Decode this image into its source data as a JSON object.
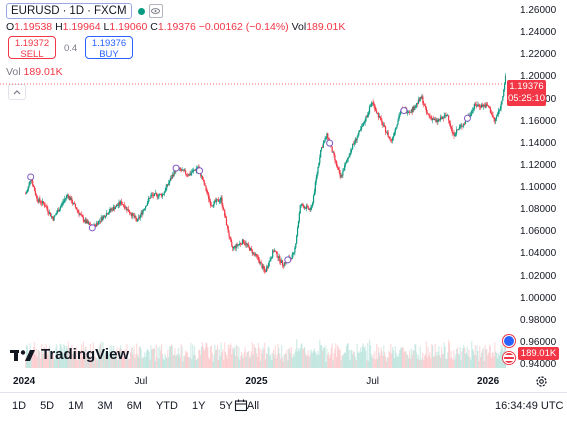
{
  "header": {
    "symbol": "EURUSD",
    "interval": "1D",
    "source": "FXCM",
    "sep": "·"
  },
  "ohlc": {
    "o_label": "O",
    "o": "1.19538",
    "h_label": "H",
    "h": "1.19964",
    "l_label": "L",
    "l": "1.19060",
    "c_label": "C",
    "c": "1.19376",
    "change": "−0.00162 (−0.14%)",
    "vol_label": "Vol",
    "vol": "189.01K"
  },
  "trade": {
    "sell_price": "1.19372",
    "sell_label": "SELL",
    "spread": "0.4",
    "buy_price": "1.19376",
    "buy_label": "BUY"
  },
  "volume_legend": {
    "label": "Vol",
    "value": "189.01K"
  },
  "price_axis": {
    "ticks": [
      "1.26000",
      "1.24000",
      "1.22000",
      "1.20000",
      "1.18000",
      "1.16000",
      "1.14000",
      "1.12000",
      "1.10000",
      "1.08000",
      "1.06000",
      "1.04000",
      "1.02000",
      "1.00000",
      "0.98000",
      "0.96000",
      "0.94000"
    ],
    "last_price": "1.19376",
    "countdown": "05:25:10",
    "volume_tag": "189.01K"
  },
  "time_axis": {
    "ticks": [
      "2024",
      "Jul",
      "2025",
      "Jul",
      "2026"
    ]
  },
  "logo": {
    "text": "TradingView"
  },
  "ranges": [
    "1D",
    "5D",
    "1M",
    "3M",
    "6M",
    "YTD",
    "1Y",
    "5Y",
    "All"
  ],
  "clock": "16:34:49 UTC",
  "colors": {
    "up": "#089981",
    "down": "#f23645",
    "accent": "#2962ff"
  },
  "icons": {
    "settings": "gear-icon",
    "date_range": "calendar-icon",
    "collapse": "chevron-up-icon",
    "status": "market-open-dot-icon",
    "flags": [
      "eu-flag-icon",
      "us-flag-icon"
    ]
  },
  "chart_data": {
    "type": "candlestick",
    "symbol": "EURUSD",
    "y_range": [
      0.94,
      1.26
    ],
    "x_ticks": [
      "2024",
      "Jul",
      "2025",
      "Jul",
      "2026"
    ],
    "close_path": [
      {
        "x": "2024-01-02",
        "y": 1.095
      },
      {
        "x": "2024-01-05",
        "y": 1.098
      },
      {
        "x": "2024-01-10",
        "y": 1.11
      },
      {
        "x": "2024-01-20",
        "y": 1.09
      },
      {
        "x": "2024-02-01",
        "y": 1.085
      },
      {
        "x": "2024-02-14",
        "y": 1.072
      },
      {
        "x": "2024-03-08",
        "y": 1.094
      },
      {
        "x": "2024-04-01",
        "y": 1.072
      },
      {
        "x": "2024-04-16",
        "y": 1.064
      },
      {
        "x": "2024-05-10",
        "y": 1.078
      },
      {
        "x": "2024-06-01",
        "y": 1.087
      },
      {
        "x": "2024-06-26",
        "y": 1.07
      },
      {
        "x": "2024-07-17",
        "y": 1.093
      },
      {
        "x": "2024-08-05",
        "y": 1.094
      },
      {
        "x": "2024-08-26",
        "y": 1.118
      },
      {
        "x": "2024-09-15",
        "y": 1.112
      },
      {
        "x": "2024-09-30",
        "y": 1.119
      },
      {
        "x": "2024-10-20",
        "y": 1.085
      },
      {
        "x": "2024-11-05",
        "y": 1.09
      },
      {
        "x": "2024-11-22",
        "y": 1.045
      },
      {
        "x": "2024-12-10",
        "y": 1.052
      },
      {
        "x": "2025-01-02",
        "y": 1.036
      },
      {
        "x": "2025-01-13",
        "y": 1.024
      },
      {
        "x": "2025-01-27",
        "y": 1.044
      },
      {
        "x": "2025-02-10",
        "y": 1.031
      },
      {
        "x": "2025-02-28",
        "y": 1.04
      },
      {
        "x": "2025-03-10",
        "y": 1.085
      },
      {
        "x": "2025-03-27",
        "y": 1.08
      },
      {
        "x": "2025-04-11",
        "y": 1.135
      },
      {
        "x": "2025-04-21",
        "y": 1.148
      },
      {
        "x": "2025-05-12",
        "y": 1.109
      },
      {
        "x": "2025-05-30",
        "y": 1.137
      },
      {
        "x": "2025-06-16",
        "y": 1.156
      },
      {
        "x": "2025-07-01",
        "y": 1.178
      },
      {
        "x": "2025-07-15",
        "y": 1.16
      },
      {
        "x": "2025-07-31",
        "y": 1.142
      },
      {
        "x": "2025-08-15",
        "y": 1.17
      },
      {
        "x": "2025-09-01",
        "y": 1.17
      },
      {
        "x": "2025-09-17",
        "y": 1.182
      },
      {
        "x": "2025-09-25",
        "y": 1.167
      },
      {
        "x": "2025-10-10",
        "y": 1.16
      },
      {
        "x": "2025-10-28",
        "y": 1.166
      },
      {
        "x": "2025-11-05",
        "y": 1.148
      },
      {
        "x": "2025-11-25",
        "y": 1.16
      },
      {
        "x": "2025-12-10",
        "y": 1.175
      },
      {
        "x": "2025-12-31",
        "y": 1.174
      },
      {
        "x": "2026-01-10",
        "y": 1.16
      },
      {
        "x": "2026-01-20",
        "y": 1.175
      },
      {
        "x": "2026-01-27",
        "y": 1.2
      },
      {
        "x": "2026-01-30",
        "y": 1.19376
      }
    ],
    "event_markers": [
      "2024-01-10",
      "2024-04-16",
      "2024-08-26",
      "2024-10-02",
      "2025-02-18",
      "2025-04-25",
      "2025-08-20",
      "2025-11-28"
    ]
  }
}
